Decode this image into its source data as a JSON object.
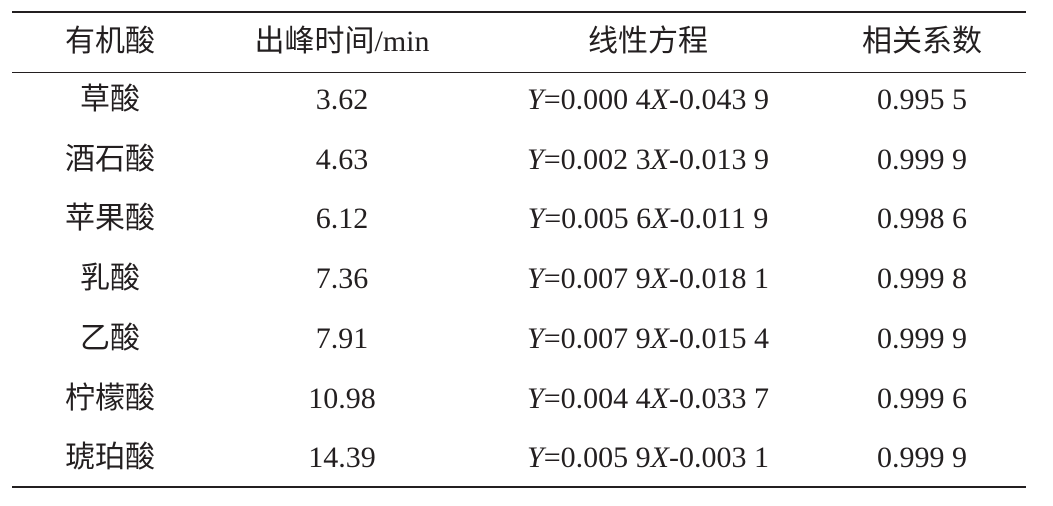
{
  "table": {
    "header": [
      "有机酸",
      "出峰时间/min",
      "线性方程",
      "相关系数"
    ],
    "rows": [
      [
        "草酸",
        "3.62",
        "Y=0.000 4X-0.043 9",
        "0.995 5"
      ],
      [
        "酒石酸",
        "4.63",
        "Y=0.002 3X-0.013 9",
        "0.999 9"
      ],
      [
        "苹果酸",
        "6.12",
        "Y=0.005 6X-0.011 9",
        "0.998 6"
      ],
      [
        "乳酸",
        "7.36",
        "Y=0.007 9X-0.018 1",
        "0.999 8"
      ],
      [
        "乙酸",
        "7.91",
        "Y=0.007 9X-0.015 4",
        "0.999 9"
      ],
      [
        "柠檬酸",
        "10.98",
        "Y=0.004 4X-0.033 7",
        "0.999 6"
      ],
      [
        "琥珀酸",
        "14.39",
        "Y=0.005 9X-0.003 1",
        "0.999 9"
      ]
    ]
  }
}
